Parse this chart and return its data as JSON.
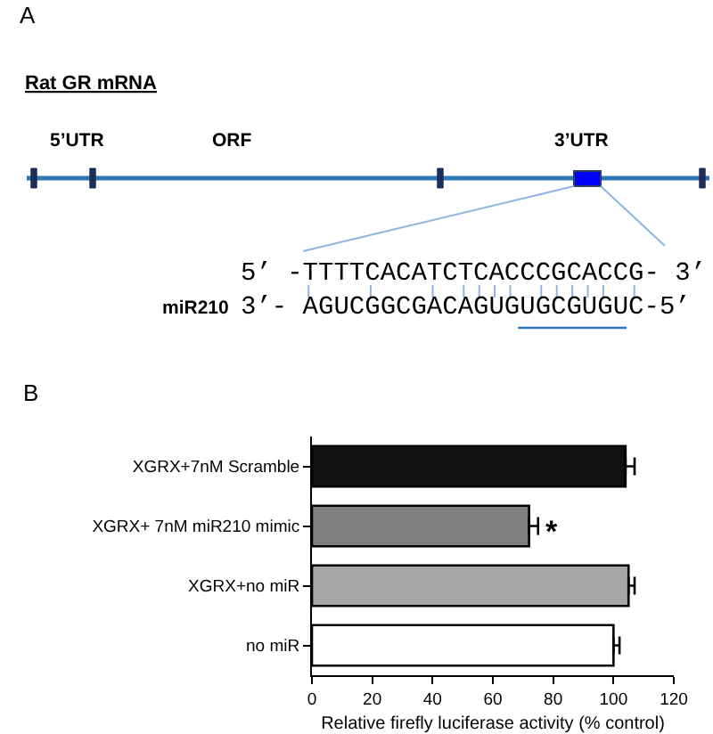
{
  "chart_data": [
    {
      "type": "other",
      "title": "A",
      "subtitle": "Rat GR mRNA",
      "annotations": [
        "5’UTR",
        "ORF",
        "3’UTR",
        "5’ -TTTTCACATCTCACCCGCACCG- 3’",
        "miR210",
        "3’- AGUCGGCGACAGUGUGCGUGUC-5’"
      ]
    },
    {
      "type": "bar",
      "title": "B",
      "orientation": "horizontal",
      "categories": [
        "XGRX+7nM Scramble",
        "XGRX+ 7nM miR210 mimic",
        "XGRX+no miR",
        "no miR"
      ],
      "values": [
        104,
        72,
        105,
        100
      ],
      "errors": [
        [
          104,
          107
        ],
        [
          72,
          75
        ],
        [
          105,
          107
        ],
        [
          100,
          102
        ]
      ],
      "colors": [
        "#111111",
        "#808080",
        "#a6a6a6",
        "#ffffff"
      ],
      "xlim": [
        0,
        120
      ],
      "xticks": [
        0,
        20,
        40,
        60,
        80,
        100,
        120
      ],
      "xlabel": "Relative firefly luciferase activity (% control)",
      "annotations": [
        {
          "text": "*",
          "x": 75,
          "y": "XGRX+ 7nM miR210 mimic"
        }
      ],
      "grid": false,
      "legend": false
    }
  ]
}
